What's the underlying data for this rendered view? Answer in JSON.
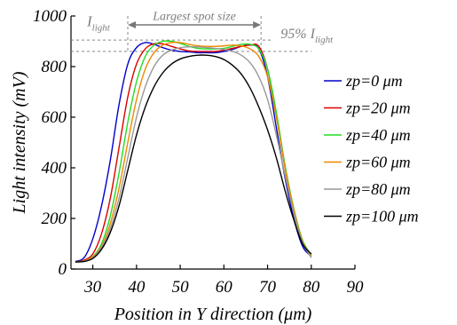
{
  "chart_data": {
    "type": "line",
    "xlabel": "Position in Y direction (μm)",
    "ylabel": "Light intensity (mV)",
    "xlim": [
      25,
      90
    ],
    "ylim": [
      0,
      1000
    ],
    "x_ticks": [
      30,
      40,
      50,
      60,
      70,
      80,
      90
    ],
    "y_ticks": [
      0,
      200,
      400,
      600,
      800,
      1000
    ],
    "grid": false,
    "legend_position": "right",
    "annotations": {
      "i_light_main": "I",
      "i_light_sub": "light",
      "largest_spot": "Largest spot size",
      "pct_main": "95% I",
      "pct_sub": "light",
      "i_light_level": 905,
      "pct_level": 860,
      "spot_x_range": [
        38,
        68.5
      ]
    },
    "series": [
      {
        "name": "zp=0 μm",
        "color": "#0000cc",
        "x": [
          26,
          28,
          30,
          32,
          34,
          36,
          38,
          40,
          42,
          44,
          46,
          48,
          50,
          52,
          54,
          56,
          58,
          60,
          62,
          64,
          66,
          68,
          70,
          72,
          74,
          76,
          78,
          80
        ],
        "y": [
          30,
          45,
          120,
          250,
          430,
          650,
          810,
          875,
          895,
          888,
          875,
          865,
          860,
          858,
          855,
          855,
          855,
          860,
          868,
          880,
          885,
          870,
          760,
          560,
          360,
          200,
          90,
          50
        ]
      },
      {
        "name": "zp=20 μm",
        "color": "#dd0000",
        "x": [
          26,
          28,
          30,
          32,
          34,
          36,
          38,
          40,
          42,
          44,
          46,
          48,
          50,
          52,
          54,
          56,
          58,
          60,
          62,
          64,
          66,
          68,
          70,
          72,
          74,
          76,
          78,
          80
        ],
        "y": [
          28,
          35,
          60,
          140,
          280,
          480,
          680,
          810,
          870,
          890,
          890,
          880,
          870,
          862,
          860,
          860,
          860,
          865,
          872,
          880,
          885,
          880,
          790,
          610,
          400,
          230,
          110,
          55
        ]
      },
      {
        "name": "zp=40 μm",
        "color": "#22dd22",
        "x": [
          26,
          28,
          30,
          32,
          34,
          36,
          38,
          40,
          42,
          44,
          46,
          48,
          50,
          52,
          54,
          56,
          58,
          60,
          62,
          64,
          66,
          68,
          70,
          72,
          74,
          76,
          78,
          80
        ],
        "y": [
          28,
          32,
          50,
          100,
          210,
          380,
          580,
          740,
          840,
          885,
          900,
          900,
          892,
          880,
          872,
          870,
          870,
          872,
          880,
          888,
          888,
          870,
          790,
          620,
          410,
          240,
          115,
          55
        ]
      },
      {
        "name": "zp=60 μm",
        "color": "#ee8800",
        "x": [
          26,
          28,
          30,
          32,
          34,
          36,
          38,
          40,
          42,
          44,
          46,
          48,
          50,
          52,
          54,
          56,
          58,
          60,
          62,
          64,
          66,
          68,
          70,
          72,
          74,
          76,
          78,
          80
        ],
        "y": [
          28,
          32,
          48,
          90,
          180,
          320,
          500,
          670,
          790,
          855,
          885,
          895,
          895,
          888,
          882,
          880,
          880,
          882,
          885,
          882,
          870,
          840,
          760,
          600,
          400,
          235,
          110,
          50
        ]
      },
      {
        "name": "zp=80 μm",
        "color": "#999999",
        "x": [
          26,
          28,
          30,
          32,
          34,
          36,
          38,
          40,
          42,
          44,
          46,
          48,
          50,
          52,
          54,
          56,
          58,
          60,
          62,
          64,
          66,
          68,
          70,
          72,
          74,
          76,
          78,
          80
        ],
        "y": [
          28,
          30,
          45,
          85,
          160,
          280,
          440,
          600,
          720,
          800,
          845,
          865,
          875,
          878,
          878,
          875,
          872,
          868,
          860,
          845,
          815,
          760,
          670,
          530,
          370,
          220,
          105,
          45
        ]
      },
      {
        "name": "zp=100 μm",
        "color": "#000000",
        "x": [
          26,
          28,
          30,
          32,
          34,
          36,
          38,
          40,
          42,
          44,
          46,
          48,
          50,
          52,
          54,
          56,
          58,
          60,
          62,
          64,
          66,
          68,
          70,
          72,
          74,
          76,
          78,
          80
        ],
        "y": [
          28,
          30,
          42,
          78,
          145,
          250,
          390,
          530,
          640,
          720,
          775,
          810,
          830,
          840,
          845,
          845,
          840,
          828,
          805,
          770,
          715,
          640,
          550,
          440,
          310,
          195,
          100,
          60
        ]
      }
    ]
  }
}
